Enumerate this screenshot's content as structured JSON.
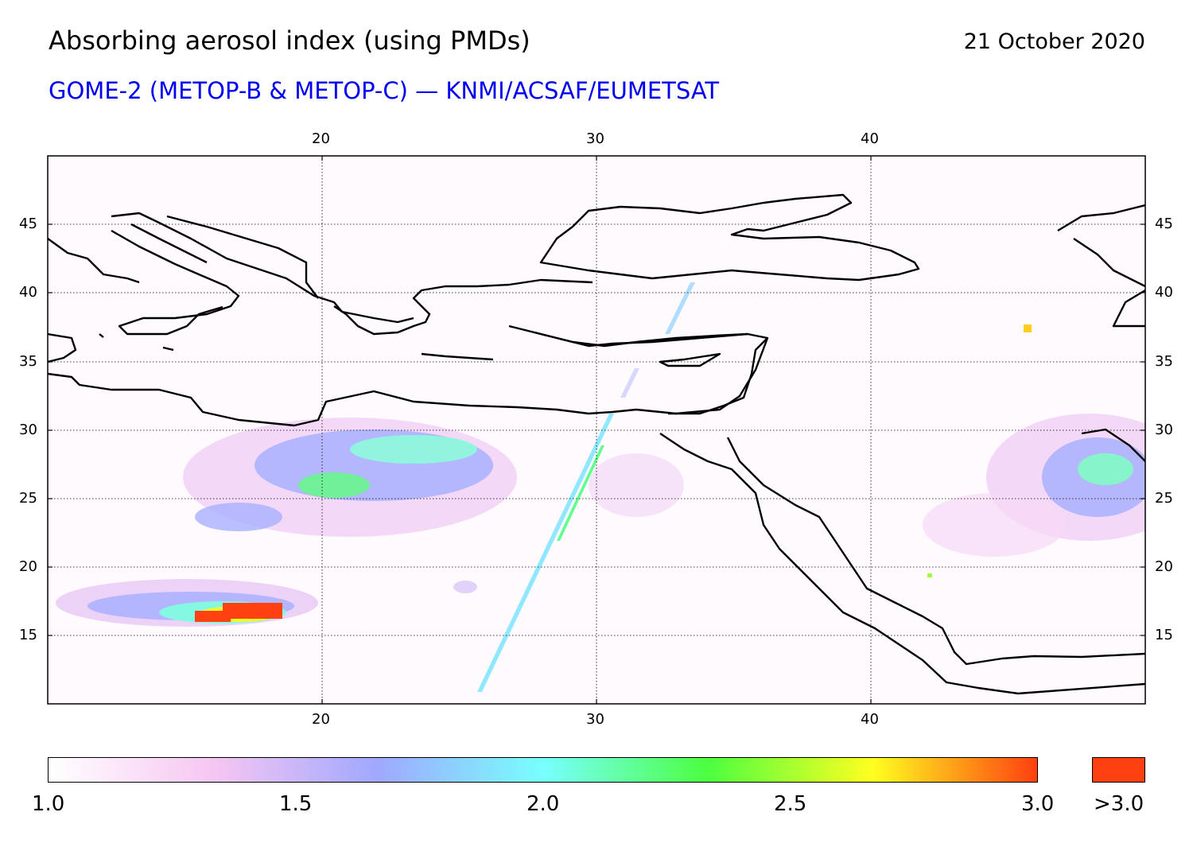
{
  "header": {
    "title": "Absorbing aerosol index (using PMDs)",
    "date": "21 October 2020",
    "subtitle": "GOME-2 (METOP-B & METOP-C) — KNMI/ACSAF/EUMETSAT"
  },
  "map": {
    "lon_range": [
      10,
      50
    ],
    "lat_range": [
      10,
      50
    ],
    "lon_ticks": [
      "20",
      "30",
      "40"
    ],
    "lat_ticks": [
      "45",
      "40",
      "35",
      "30",
      "25",
      "20",
      "15"
    ],
    "grid": true
  },
  "colorbar": {
    "labels": [
      "1.0",
      "1.5",
      "2.0",
      "2.5",
      "3.0"
    ],
    "over_label": ">3.0",
    "colors": [
      "#ffffff",
      "#f6c6f2",
      "#9fa8ff",
      "#78ffff",
      "#4cff40",
      "#ffff20",
      "#ff4010"
    ],
    "over_color": "#ff4010"
  }
}
